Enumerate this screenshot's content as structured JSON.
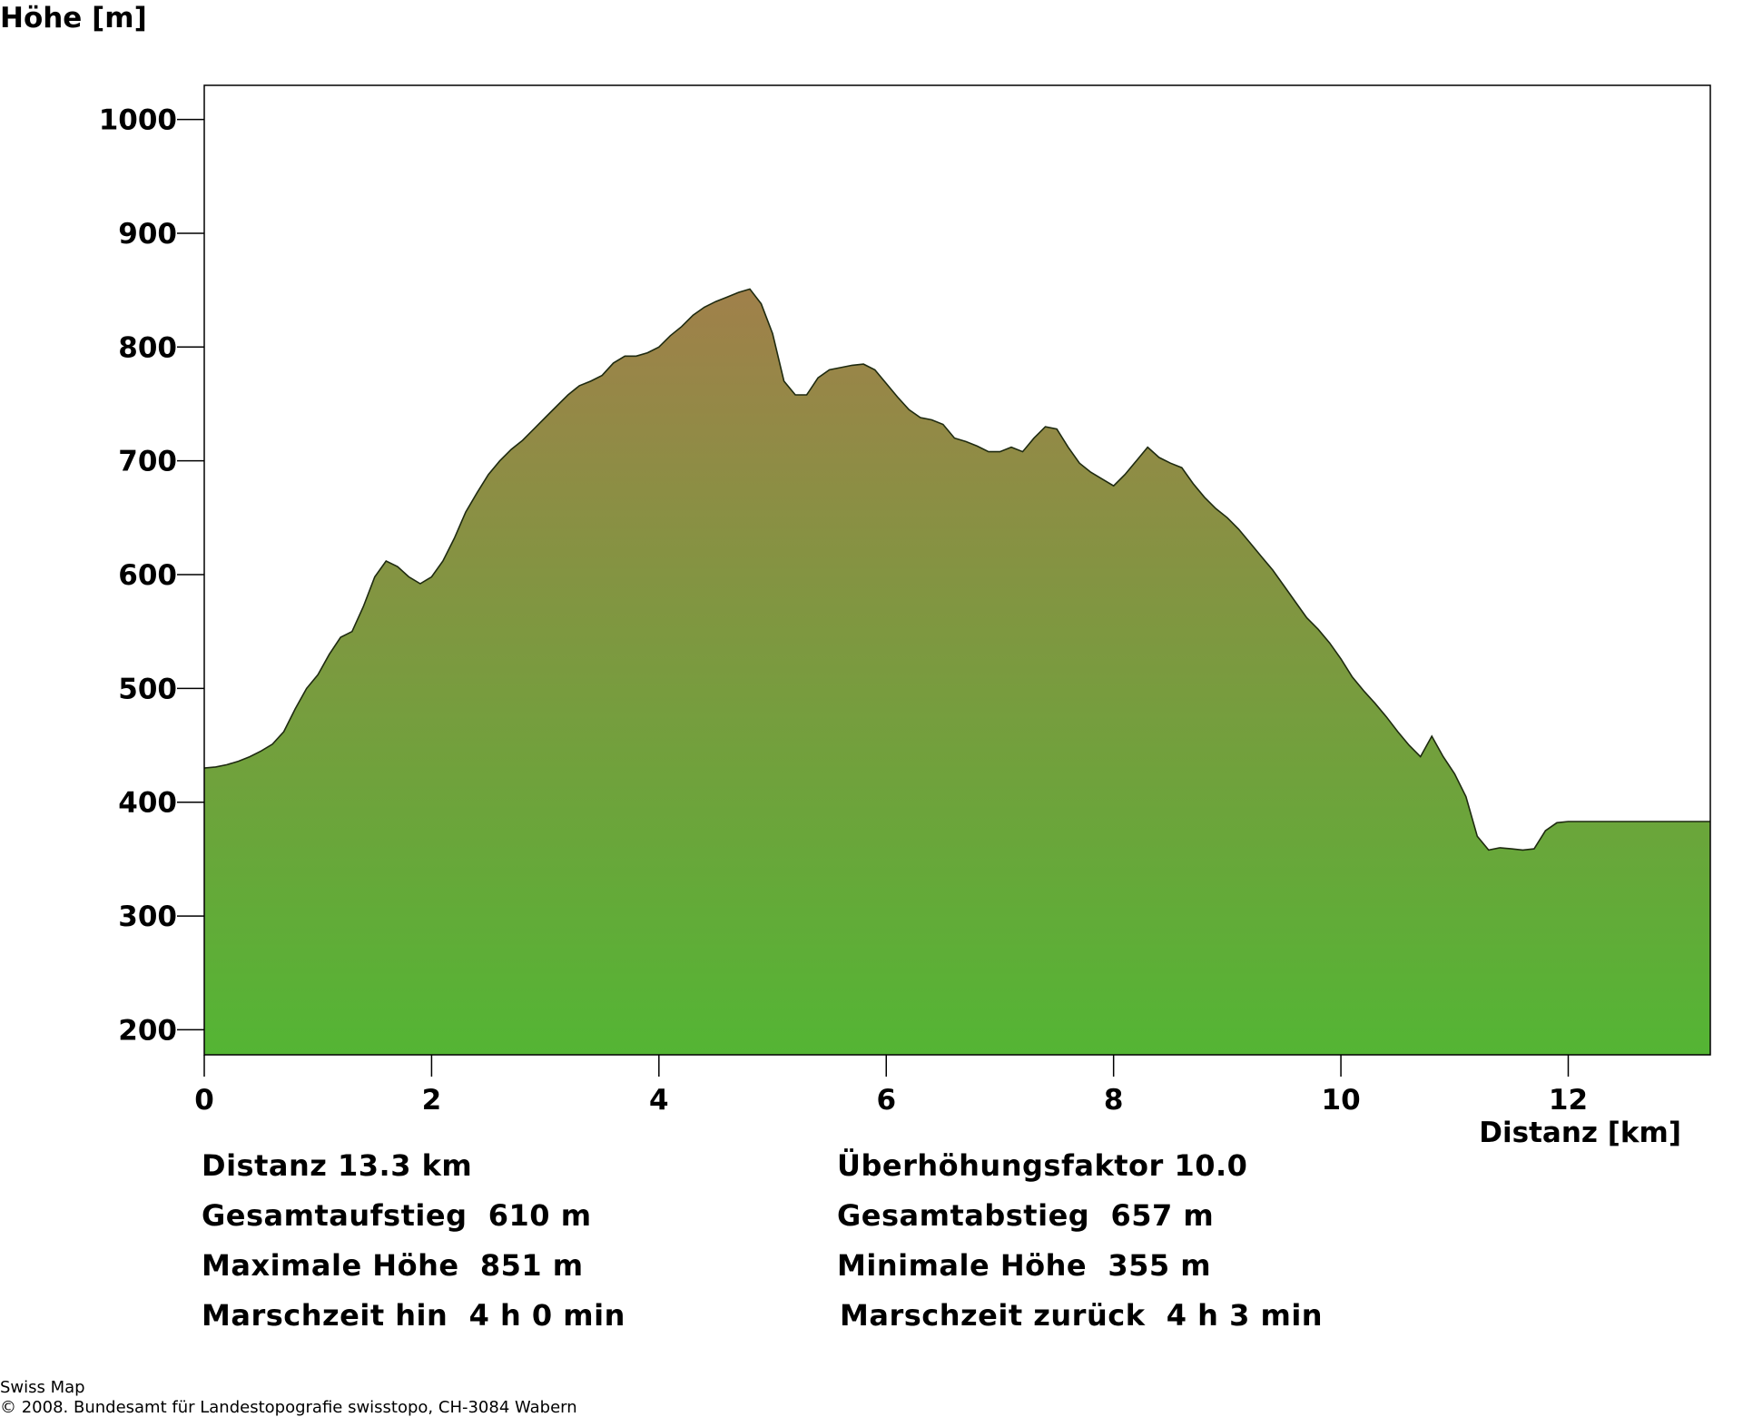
{
  "chart_data": {
    "type": "area",
    "ylabel": "Höhe [m]",
    "xlabel": "Distanz [km]",
    "xlim": [
      0,
      13.25
    ],
    "ylim": [
      178,
      1030
    ],
    "x_ticks": [
      0,
      2,
      4,
      6,
      8,
      10,
      12
    ],
    "x_tick_labels": [
      "0",
      "2",
      "4",
      "6",
      "8",
      "10",
      "12"
    ],
    "y_ticks": [
      200,
      300,
      400,
      500,
      600,
      700,
      800,
      900,
      1000
    ],
    "y_tick_labels": [
      "200",
      "300",
      "400",
      "500",
      "600",
      "700",
      "800",
      "900",
      "1000"
    ],
    "gradient": {
      "top": "#a0804a",
      "bottom": "#54b534"
    },
    "series": [
      {
        "x": [
          0,
          0.1,
          0.2,
          0.3,
          0.4,
          0.5,
          0.6,
          0.7,
          0.8,
          0.9,
          1.0,
          1.1,
          1.2,
          1.3,
          1.4,
          1.5,
          1.6,
          1.7,
          1.8,
          1.9,
          2.0,
          2.1,
          2.2,
          2.3,
          2.4,
          2.5,
          2.6,
          2.7,
          2.8,
          2.9,
          3.0,
          3.1,
          3.2,
          3.3,
          3.4,
          3.5,
          3.6,
          3.7,
          3.8,
          3.9,
          4.0,
          4.1,
          4.2,
          4.3,
          4.4,
          4.5,
          4.6,
          4.7,
          4.8,
          4.9,
          5.0,
          5.1,
          5.2,
          5.3,
          5.4,
          5.5,
          5.6,
          5.7,
          5.8,
          5.9,
          6.0,
          6.1,
          6.2,
          6.3,
          6.4,
          6.5,
          6.6,
          6.7,
          6.8,
          6.9,
          7.0,
          7.1,
          7.2,
          7.3,
          7.4,
          7.5,
          7.6,
          7.7,
          7.8,
          7.9,
          8.0,
          8.1,
          8.2,
          8.3,
          8.4,
          8.5,
          8.6,
          8.7,
          8.8,
          8.9,
          9.0,
          9.1,
          9.2,
          9.3,
          9.4,
          9.5,
          9.6,
          9.7,
          9.8,
          9.9,
          10.0,
          10.1,
          10.2,
          10.3,
          10.4,
          10.5,
          10.6,
          10.7,
          10.8,
          10.9,
          11.0,
          11.1,
          11.2,
          11.3,
          11.4,
          11.5,
          11.6,
          11.7,
          11.8,
          11.9,
          12.0,
          12.1,
          12.2,
          12.3,
          12.4,
          12.5,
          12.6,
          12.7,
          12.8,
          12.9,
          13.0,
          13.1,
          13.2,
          13.25
        ],
        "y": [
          430,
          431,
          433,
          436,
          440,
          445,
          451,
          462,
          482,
          500,
          512,
          530,
          545,
          550,
          572,
          598,
          612,
          607,
          598,
          592,
          598,
          612,
          632,
          655,
          672,
          688,
          700,
          710,
          718,
          728,
          738,
          748,
          758,
          766,
          770,
          775,
          786,
          792,
          792,
          795,
          800,
          810,
          818,
          828,
          835,
          840,
          844,
          848,
          851,
          838,
          812,
          770,
          758,
          758,
          773,
          780,
          782,
          784,
          785,
          780,
          768,
          756,
          745,
          738,
          736,
          732,
          720,
          717,
          713,
          708,
          708,
          712,
          708,
          720,
          730,
          728,
          712,
          698,
          690,
          684,
          678,
          688,
          700,
          712,
          703,
          698,
          694,
          680,
          668,
          658,
          650,
          640,
          628,
          616,
          604,
          590,
          576,
          562,
          552,
          540,
          526,
          510,
          498,
          487,
          475,
          462,
          450,
          440,
          458,
          440,
          425,
          405,
          370,
          358,
          360,
          359,
          358,
          359,
          375,
          382,
          383,
          383,
          383,
          383,
          383,
          383,
          383,
          383,
          383,
          383,
          383,
          383,
          383,
          383
        ]
      }
    ]
  },
  "stats": {
    "distance": "Distanz 13.3 km",
    "exaggeration": "Überhöhungsfaktor 10.0",
    "ascent": "Gesamtaufstieg  610 m",
    "descent": "Gesamtabstieg  657 m",
    "max_height": "Maximale Höhe  851 m",
    "min_height": "Minimale Höhe  355 m",
    "time_out": "Marschzeit hin  4 h 0 min",
    "time_back": "Marschzeit zurück  4 h 3 min"
  },
  "footer": {
    "line1": "Swiss Map",
    "line2": "© 2008. Bundesamt für Landestopografie swisstopo, CH-3084 Wabern"
  }
}
